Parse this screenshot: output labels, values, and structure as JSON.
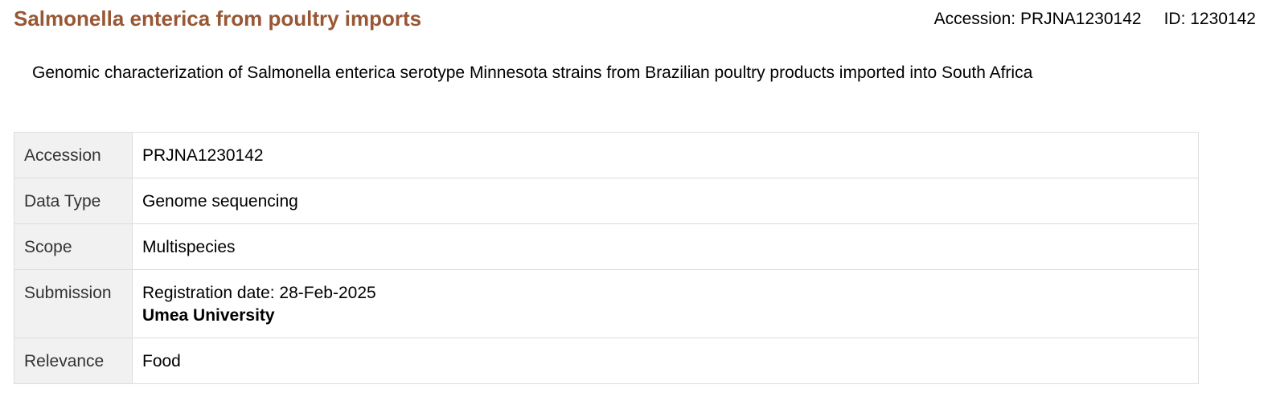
{
  "header": {
    "title": "Salmonella enterica from poultry imports",
    "accession_label": "Accession: PRJNA1230142",
    "id_label": "ID: 1230142"
  },
  "description": "Genomic characterization of Salmonella enterica serotype Minnesota strains from Brazilian poultry products imported into South Africa",
  "details": {
    "accession": {
      "label": "Accession",
      "value": "PRJNA1230142"
    },
    "data_type": {
      "label": "Data Type",
      "value": "Genome sequencing"
    },
    "scope": {
      "label": "Scope",
      "value": "Multispecies"
    },
    "submission": {
      "label": "Submission",
      "registration": "Registration date: 28-Feb-2025",
      "organization": "Umea University"
    },
    "relevance": {
      "label": "Relevance",
      "value": "Food"
    }
  },
  "colors": {
    "title": "#985735",
    "label_background": "#f1f1f1",
    "border": "#dddddd"
  }
}
